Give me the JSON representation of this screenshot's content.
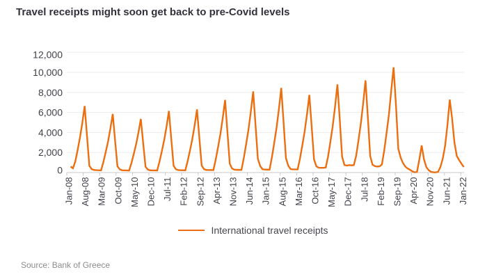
{
  "title": "Travel receipts might soon get back to pre-Covid levels",
  "legend": {
    "label": "International travel receipts"
  },
  "source": "Source: Bank of Greece",
  "colors": {
    "line": "#eb6f10",
    "grid": "#ebebeb",
    "axis": "#c9c9c9",
    "tick": "#c9c9c9",
    "axis_text": "#41414b",
    "title": "#32323c",
    "legend_text": "#46464e",
    "source_text": "#8c8c8c"
  },
  "chart_data": {
    "type": "line",
    "title": "Travel receipts might soon get back to pre-Covid levels",
    "x_start": "Jan-08",
    "x_end": "Jan-22",
    "x_tick_every_months": 7,
    "x_tick_labels": [
      "Jan-08",
      "Aug-08",
      "Mar-09",
      "Oct-09",
      "May-10",
      "Dec-10",
      "Jul-11",
      "Feb-12",
      "Sep-12",
      "Apr-13",
      "Nov-13",
      "Jun-14",
      "Jan-15",
      "Aug-15",
      "Mar-16",
      "Oct-16",
      "May-17",
      "Dec-17",
      "Jul-18",
      "Feb-19",
      "Sep-19",
      "Apr-20",
      "Nov-20",
      "Jun-21",
      "Jan-22"
    ],
    "y_ticks": [
      0,
      2000,
      4000,
      6000,
      8000,
      10000,
      12000
    ],
    "y_tick_labels": [
      "0",
      "2,000",
      "4,000",
      "6,000",
      "8,000",
      "10,000",
      "12,000"
    ],
    "ylim": [
      0,
      12000
    ],
    "grid": "horizontal",
    "legend_position": "bottom",
    "series": [
      {
        "name": "International travel receipts",
        "values": [
          600,
          430,
          1100,
          2250,
          3500,
          4950,
          6640,
          3650,
          680,
          340,
          260,
          240,
          230,
          215,
          1050,
          2050,
          3100,
          4400,
          5850,
          3200,
          640,
          310,
          230,
          215,
          210,
          200,
          960,
          1870,
          2840,
          4010,
          5350,
          2940,
          590,
          290,
          225,
          215,
          215,
          210,
          1110,
          2150,
          3260,
          4610,
          6150,
          3380,
          680,
          330,
          245,
          230,
          230,
          220,
          1130,
          2200,
          3340,
          4730,
          6300,
          3470,
          700,
          340,
          260,
          250,
          255,
          245,
          1300,
          2540,
          3840,
          5440,
          7250,
          4060,
          870,
          400,
          290,
          270,
          275,
          265,
          1460,
          2830,
          4290,
          6070,
          8100,
          4780,
          1380,
          650,
          330,
          300,
          295,
          285,
          1520,
          2960,
          4480,
          6340,
          8450,
          4990,
          1440,
          680,
          350,
          320,
          320,
          310,
          1400,
          2710,
          4110,
          5810,
          7750,
          4580,
          1320,
          620,
          480,
          470,
          470,
          500,
          1590,
          3080,
          4660,
          6600,
          8800,
          5280,
          1580,
          750,
          700,
          740,
          720,
          740,
          1660,
          3220,
          4880,
          6900,
          9200,
          5520,
          1660,
          780,
          640,
          600,
          620,
          800,
          2200,
          3960,
          5770,
          8200,
          10500,
          6800,
          2400,
          1500,
          950,
          600,
          400,
          280,
          120,
          30,
          60,
          1300,
          2700,
          1300,
          540,
          235,
          70,
          30,
          20,
          70,
          550,
          1370,
          2640,
          4720,
          7280,
          5400,
          2990,
          1650,
          1250,
          880,
          555
        ]
      }
    ]
  }
}
